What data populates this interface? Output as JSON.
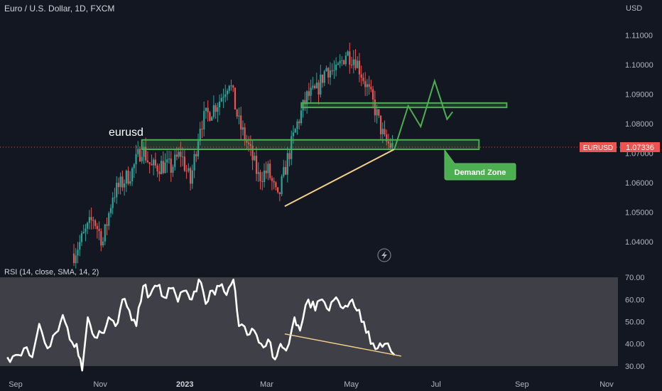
{
  "header": {
    "symbol_title": "Euro / U.S. Dollar, 1D, FXCM",
    "currency": "USD"
  },
  "annotations": {
    "chart_label": "eurusd",
    "demand_zone_label": "Demand Zone"
  },
  "price_tag": {
    "symbol": "EURUSD",
    "price": "1.07336",
    "value": 1.07336
  },
  "colors": {
    "background": "#131722",
    "up": "#26a69a",
    "down": "#ef5350",
    "zone": "#4caf50",
    "trendline": "#f5d08a",
    "rsi_line": "#ffffff",
    "rsi_band": "#3e3f47",
    "price_tag": "#ef5350"
  },
  "chart_data": [
    {
      "type": "candlestick",
      "y_axis_ticks": [
        "1.11000",
        "1.10000",
        "1.09000",
        "1.08000",
        "1.07000",
        "1.06000",
        "1.05000",
        "1.04000"
      ],
      "y_axis_values": [
        1.11,
        1.1,
        1.09,
        1.08,
        1.07,
        1.06,
        1.05,
        1.04
      ],
      "ylim": [
        1.033,
        1.1195
      ],
      "x_axis_ticks": [
        "Sep",
        "Nov",
        "2023",
        "Mar",
        "May",
        "Jul",
        "Sep",
        "Nov"
      ],
      "x_tick_dates": [
        "2022-09-01",
        "2022-11-01",
        "2023-01-01",
        "2023-03-01",
        "2023-05-01",
        "2023-07-01",
        "2023-09-01",
        "2023-11-01"
      ],
      "xlim": [
        "2022-08-26",
        "2023-11-26"
      ],
      "price_path": [
        [
          "2022-10-13",
          1.036
        ],
        [
          "2022-10-20",
          1.042
        ],
        [
          "2022-10-27",
          1.048
        ],
        [
          "2022-11-03",
          1.04
        ],
        [
          "2022-11-10",
          1.056
        ],
        [
          "2022-11-17",
          1.06
        ],
        [
          "2022-11-24",
          1.064
        ],
        [
          "2022-12-01",
          1.072
        ],
        [
          "2022-12-08",
          1.065
        ],
        [
          "2022-12-15",
          1.066
        ],
        [
          "2022-12-22",
          1.065
        ],
        [
          "2022-12-29",
          1.07
        ],
        [
          "2023-01-05",
          1.06
        ],
        [
          "2023-01-12",
          1.08
        ],
        [
          "2023-01-19",
          1.084
        ],
        [
          "2023-01-26",
          1.088
        ],
        [
          "2023-02-02",
          1.095
        ],
        [
          "2023-02-09",
          1.08
        ],
        [
          "2023-02-16",
          1.072
        ],
        [
          "2023-02-23",
          1.062
        ],
        [
          "2023-03-02",
          1.064
        ],
        [
          "2023-03-09",
          1.054
        ],
        [
          "2023-03-16",
          1.068
        ],
        [
          "2023-03-23",
          1.08
        ],
        [
          "2023-03-30",
          1.089
        ],
        [
          "2023-04-06",
          1.091
        ],
        [
          "2023-04-13",
          1.099
        ],
        [
          "2023-04-20",
          1.097
        ],
        [
          "2023-04-27",
          1.104
        ],
        [
          "2023-05-04",
          1.102
        ],
        [
          "2023-05-11",
          1.094
        ],
        [
          "2023-05-18",
          1.085
        ],
        [
          "2023-05-25",
          1.074
        ],
        [
          "2023-05-31",
          1.072
        ]
      ],
      "zones": [
        {
          "x1": "2023-03-26",
          "x2": "2023-08-21",
          "y1": 1.0855,
          "y2": 1.087
        },
        {
          "x1": "2022-12-01",
          "x2": "2023-08-01",
          "y1": 1.0713,
          "y2": 1.0745
        }
      ],
      "trendline": {
        "x1": "2023-03-14",
        "y1": 1.052,
        "x2": "2023-06-01",
        "y2": 1.0713
      },
      "projection": [
        [
          "2023-06-01",
          1.0713
        ],
        [
          "2023-06-11",
          1.086
        ],
        [
          "2023-06-20",
          1.079
        ],
        [
          "2023-06-30",
          1.0945
        ],
        [
          "2023-07-09",
          1.0815
        ],
        [
          "2023-07-13",
          1.084
        ]
      ]
    },
    {
      "type": "line",
      "title": "RSI (14, close, SMA, 14, 2)",
      "y_axis_ticks": [
        "70.00",
        "60.00",
        "50.00",
        "40.00",
        "30.00"
      ],
      "y_axis_values": [
        70,
        60,
        50,
        40,
        30
      ],
      "ylim": [
        25.5,
        74.5
      ],
      "band": [
        30,
        70
      ],
      "series": [
        {
          "points": [
            [
              "2022-08-26",
              34
            ],
            [
              "2022-09-01",
              35
            ],
            [
              "2022-09-07",
              38
            ],
            [
              "2022-09-13",
              34
            ],
            [
              "2022-09-18",
              49
            ],
            [
              "2022-09-24",
              38
            ],
            [
              "2022-09-30",
              45
            ],
            [
              "2022-10-05",
              53
            ],
            [
              "2022-10-10",
              42
            ],
            [
              "2022-10-15",
              40
            ],
            [
              "2022-10-19",
              28
            ],
            [
              "2022-10-23",
              52
            ],
            [
              "2022-10-28",
              43
            ],
            [
              "2022-11-02",
              45
            ],
            [
              "2022-11-07",
              52
            ],
            [
              "2022-11-12",
              48
            ],
            [
              "2022-11-17",
              60
            ],
            [
              "2022-11-22",
              55
            ],
            [
              "2022-11-27",
              48
            ],
            [
              "2022-12-02",
              66
            ],
            [
              "2022-12-07",
              62
            ],
            [
              "2022-12-12",
              66
            ],
            [
              "2022-12-17",
              61
            ],
            [
              "2022-12-22",
              65
            ],
            [
              "2022-12-27",
              59
            ],
            [
              "2023-01-02",
              64
            ],
            [
              "2023-01-06",
              60
            ],
            [
              "2023-01-11",
              69
            ],
            [
              "2023-01-16",
              58
            ],
            [
              "2023-01-21",
              64
            ],
            [
              "2023-01-26",
              66
            ],
            [
              "2023-01-31",
              62
            ],
            [
              "2023-02-05",
              69
            ],
            [
              "2023-02-09",
              48
            ],
            [
              "2023-02-15",
              44
            ],
            [
              "2023-02-20",
              46
            ],
            [
              "2023-02-25",
              40
            ],
            [
              "2023-03-02",
              42
            ],
            [
              "2023-03-07",
              33
            ],
            [
              "2023-03-11",
              40
            ],
            [
              "2023-03-15",
              37
            ],
            [
              "2023-03-21",
              52
            ],
            [
              "2023-03-25",
              46
            ],
            [
              "2023-03-31",
              60
            ],
            [
              "2023-04-05",
              55
            ],
            [
              "2023-04-10",
              60
            ],
            [
              "2023-04-15",
              55
            ],
            [
              "2023-04-20",
              61
            ],
            [
              "2023-04-25",
              56
            ],
            [
              "2023-04-30",
              59
            ],
            [
              "2023-05-05",
              55
            ],
            [
              "2023-05-10",
              50
            ],
            [
              "2023-05-15",
              40
            ],
            [
              "2023-05-20",
              38
            ],
            [
              "2023-05-25",
              40
            ],
            [
              "2023-06-01",
              35
            ]
          ]
        }
      ],
      "trendline": {
        "x1": "2023-03-14",
        "y1": 44.5,
        "x2": "2023-06-06",
        "y2": 34.5
      }
    }
  ]
}
